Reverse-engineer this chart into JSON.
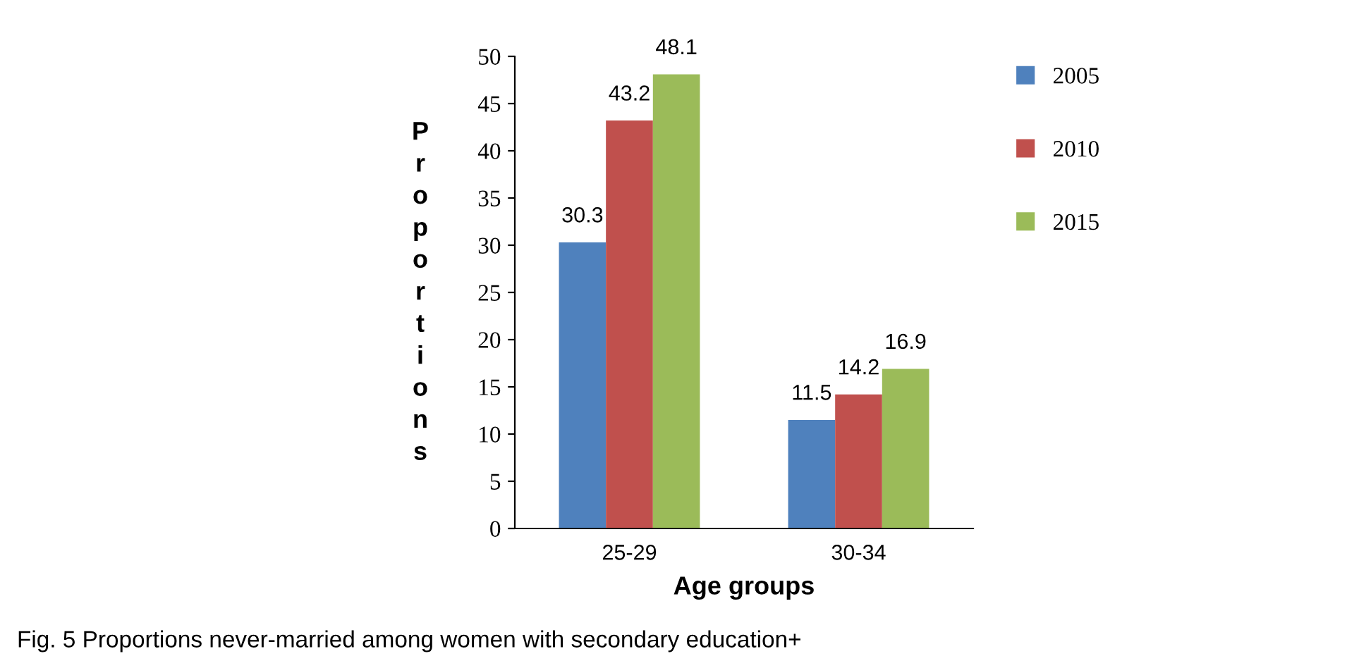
{
  "chart_data": {
    "type": "bar",
    "xlabel": "Age groups",
    "ylabel": "Proportions",
    "categories": [
      "25-29",
      "30-34"
    ],
    "series": [
      {
        "name": "2005",
        "color": "#4f81bd",
        "values": [
          30.3,
          11.5
        ]
      },
      {
        "name": "2010",
        "color": "#c0504d",
        "values": [
          43.2,
          14.2
        ]
      },
      {
        "name": "2015",
        "color": "#9bbb59",
        "values": [
          48.1,
          16.9
        ]
      }
    ],
    "ylim": [
      0,
      50
    ],
    "yticks": [
      0,
      5,
      10,
      15,
      20,
      25,
      30,
      35,
      40,
      45,
      50
    ],
    "data_labels": true,
    "legend": "right",
    "grid": false,
    "annotations": [
      "Fig. 5 Proportions never-married among women with secondary education+"
    ]
  }
}
